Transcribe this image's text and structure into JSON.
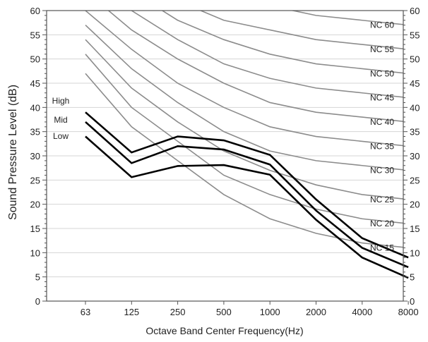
{
  "chart_data": {
    "type": "line",
    "xlabel": "Octave Band Center Frequency(Hz)",
    "ylabel": "Sound Pressure Level (dB)",
    "ylim": [
      0,
      60
    ],
    "y_ticks": [
      0,
      5,
      10,
      15,
      20,
      25,
      30,
      35,
      40,
      45,
      50,
      55,
      60
    ],
    "categories": [
      "63",
      "125",
      "250",
      "500",
      "1000",
      "2000",
      "4000",
      "8000"
    ],
    "grid": "horizontal",
    "nc_curves": [
      {
        "name": "NC 15",
        "values": [
          47,
          36,
          29,
          22,
          17,
          14,
          12,
          11
        ]
      },
      {
        "name": "NC 20",
        "values": [
          51,
          40,
          33,
          26,
          22,
          19,
          17,
          16
        ]
      },
      {
        "name": "NC 25",
        "values": [
          54,
          44,
          37,
          31,
          27,
          24,
          22,
          21
        ]
      },
      {
        "name": "NC 30",
        "values": [
          57,
          48,
          41,
          35,
          31,
          29,
          28,
          27
        ]
      },
      {
        "name": "NC 35",
        "values": [
          60,
          52,
          45,
          40,
          36,
          34,
          33,
          32
        ]
      },
      {
        "name": "NC 40",
        "values": [
          64,
          56,
          50,
          45,
          41,
          39,
          38,
          37
        ]
      },
      {
        "name": "NC 45",
        "values": [
          67,
          60,
          54,
          49,
          46,
          44,
          43,
          42
        ]
      },
      {
        "name": "NC 50",
        "values": [
          71,
          64,
          58,
          54,
          51,
          49,
          48,
          47
        ]
      },
      {
        "name": "NC 55",
        "values": [
          74,
          67,
          62,
          58,
          56,
          54,
          53,
          52
        ]
      },
      {
        "name": "NC 60",
        "values": [
          77,
          71,
          67,
          63,
          61,
          59,
          58,
          57
        ]
      }
    ],
    "series": [
      {
        "name": "High",
        "values": [
          39,
          30.7,
          34,
          33.2,
          30.2,
          21,
          13,
          9
        ]
      },
      {
        "name": "Mid",
        "values": [
          37,
          28.5,
          32,
          31.3,
          28.2,
          18.7,
          11,
          7
        ]
      },
      {
        "name": "Low",
        "values": [
          34,
          25.6,
          27.9,
          28.1,
          26.1,
          16.8,
          9,
          4.8
        ]
      }
    ]
  },
  "colors": {
    "nc_curve": "#8c8c8c",
    "measured": "#000000",
    "grid": "#d4d4d4",
    "axis": "#555555"
  }
}
